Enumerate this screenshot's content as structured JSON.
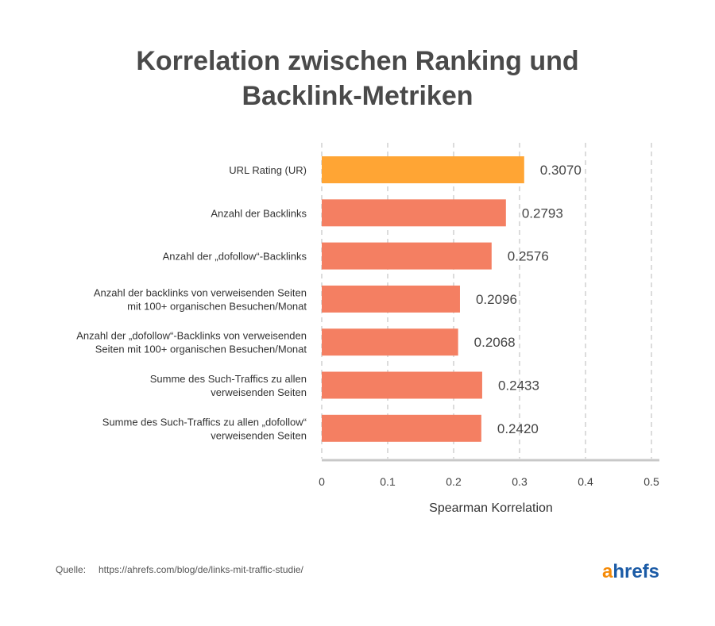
{
  "chart_data": {
    "type": "bar",
    "orientation": "horizontal",
    "title": [
      "Korrelation zwischen Ranking und",
      "Backlink-Metriken"
    ],
    "categories": [
      [
        "URL Rating (UR)"
      ],
      [
        "Anzahl der Backlinks"
      ],
      [
        "Anzahl der „dofollow“-Backlinks"
      ],
      [
        "Anzahl der backlinks von verweisenden Seiten",
        "mit 100+ organischen Besuchen/Monat"
      ],
      [
        "Anzahl der „dofollow“-Backlinks von verweisenden",
        "Seiten mit 100+ organischen Besuchen/Monat"
      ],
      [
        "Summe des Such-Traffics zu allen",
        "verweisenden Seiten"
      ],
      [
        "Summe des Such-Traffics zu allen „dofollow“",
        "verweisenden Seiten"
      ]
    ],
    "values": [
      0.307,
      0.2793,
      0.2576,
      0.2096,
      0.2068,
      0.2433,
      0.242
    ],
    "value_labels": [
      "0.3070",
      "0.2793",
      "0.2576",
      "0.2096",
      "0.2068",
      "0.2433",
      "0.2420"
    ],
    "highlight_color": "#FFA534",
    "bar_color": "#F47F62",
    "xlabel": "Spearman Korrelation",
    "xlim": [
      0,
      0.5
    ],
    "xticks": [
      0,
      0.1,
      0.2,
      0.3,
      0.4,
      0.5
    ],
    "xtick_labels": [
      "0",
      "0.1",
      "0.2",
      "0.3",
      "0.4",
      "0.5"
    ],
    "grid": true
  },
  "footer": {
    "source_label": "Quelle:",
    "source_url": "https://ahrefs.com/blog/de/links-mit-traffic-studie/",
    "logo_a": "a",
    "logo_rest": "hrefs"
  }
}
